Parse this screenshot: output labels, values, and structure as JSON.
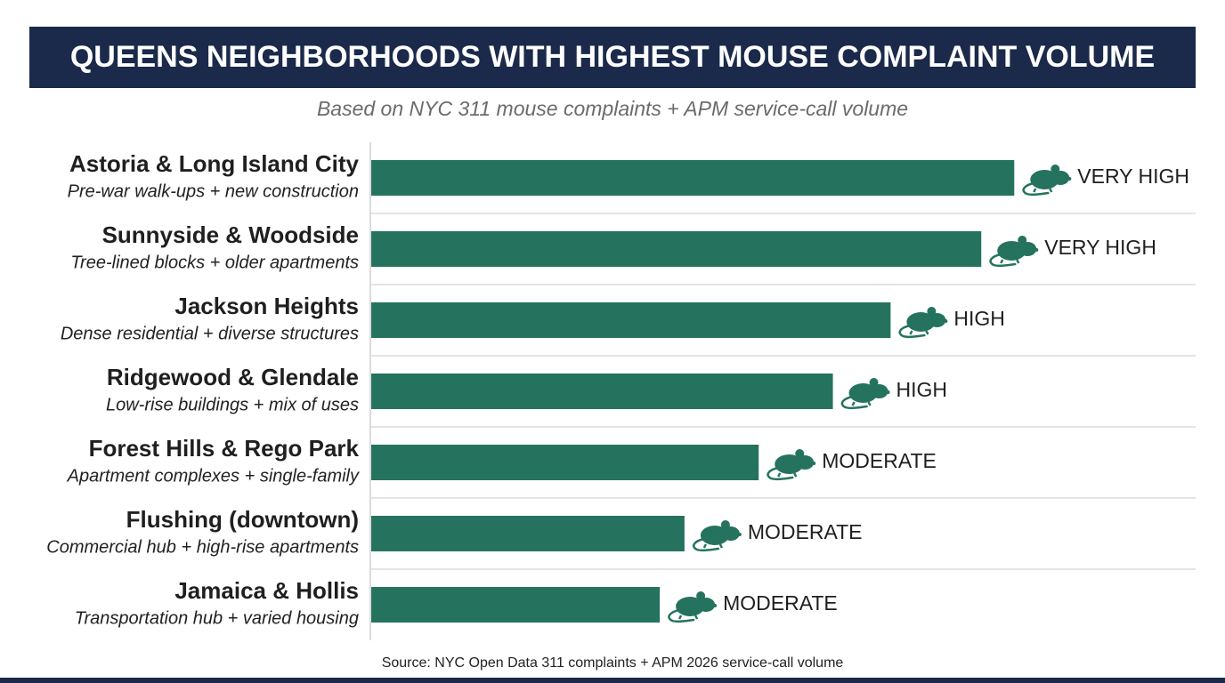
{
  "chart_data": {
    "type": "bar",
    "orientation": "horizontal",
    "title": "QUEENS NEIGHBORHOODS WITH HIGHEST MOUSE COMPLAINT VOLUME",
    "subtitle": "Based on NYC 311 mouse complaints + APM service-call volume",
    "source": "Source: NYC Open Data 311 complaints + APM 2026 service-call volume",
    "categories": [
      "Astoria & Long Island City",
      "Sunnyside & Woodside",
      "Jackson Heights",
      "Ridgewood & Glendale",
      "Forest Hills & Rego Park",
      "Flushing (downtown)",
      "Jamaica & Hollis"
    ],
    "descriptions": [
      "Pre-war walk-ups + new construction",
      "Tree-lined blocks + older apartments",
      "Dense residential + diverse structures",
      "Low-rise buildings + mix of uses",
      "Apartment complexes + single-family",
      "Commercial hub + high-rise apartments",
      "Transportation hub + varied housing"
    ],
    "values": [
      78,
      74,
      63,
      56,
      47,
      38,
      35
    ],
    "levels": [
      "VERY HIGH",
      "VERY HIGH",
      "HIGH",
      "HIGH",
      "MODERATE",
      "MODERATE",
      "MODERATE"
    ],
    "xlim": [
      0,
      100
    ],
    "color": "#25735e",
    "grid": true
  }
}
